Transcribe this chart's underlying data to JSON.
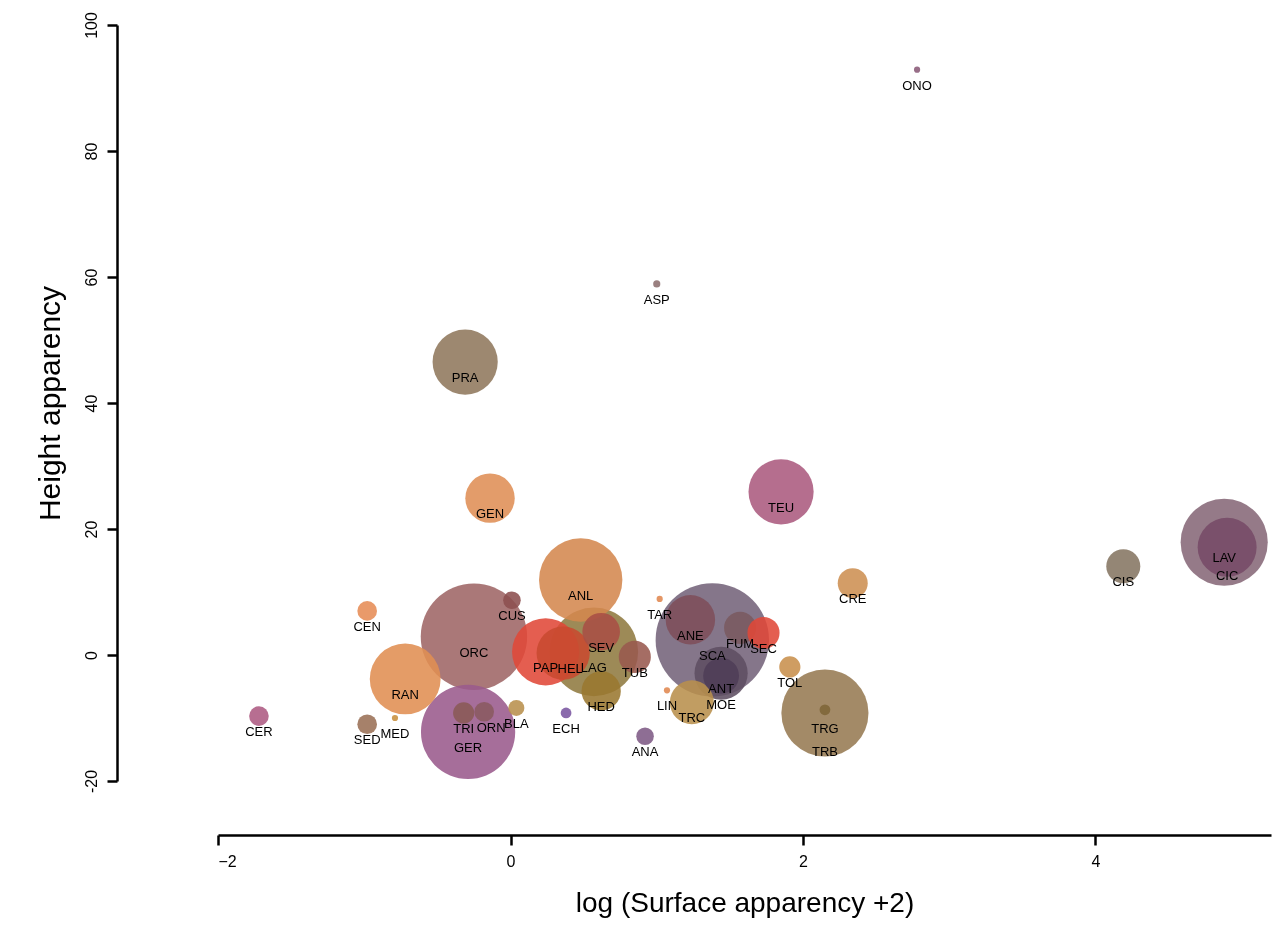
{
  "chart_data": {
    "type": "bubble",
    "xlabel": "log (Surface apparency +2)",
    "ylabel": "Height apparency",
    "marker": "circle",
    "xlim": [
      -2,
      5.2
    ],
    "ylim": [
      -20,
      100
    ],
    "xticks": [
      {
        "value": -2,
        "label": "−2"
      },
      0,
      2,
      4
    ],
    "yticks": [
      -20,
      0,
      20,
      40,
      60,
      80,
      100
    ],
    "x": [
      2.78,
      1.0,
      -0.31,
      -0.14,
      1.85,
      2.34,
      4.19,
      4.88,
      4.9,
      0.48,
      0.01,
      -0.25,
      -0.98,
      -1.72,
      -0.98,
      -0.79,
      -0.72,
      -0.29,
      -0.32,
      -0.18,
      0.04,
      0.38,
      0.24,
      0.36,
      0.57,
      0.62,
      0.62,
      0.85,
      1.02,
      1.23,
      1.38,
      1.44,
      1.44,
      1.57,
      1.73,
      1.07,
      1.24,
      0.92,
      1.91,
      2.15,
      2.15
    ],
    "values": [
      92.9,
      58.9,
      46.5,
      24.9,
      25.9,
      11.4,
      14.1,
      17.9,
      17.1,
      11.9,
      8.7,
      2.9,
      7.0,
      -9.7,
      -11.0,
      -10.0,
      -3.8,
      -12.2,
      -9.2,
      -9.0,
      -8.4,
      -9.2,
      0.5,
      0.3,
      0.5,
      3.7,
      -5.7,
      -0.3,
      8.9,
      5.6,
      2.4,
      -2.9,
      -3.3,
      4.3,
      3.5,
      -5.6,
      -7.5,
      -12.9,
      -1.9,
      -9.2,
      -8.7
    ],
    "sizes": [
      0.003,
      0.004,
      0.33,
      0.19,
      0.33,
      0.07,
      0.09,
      0.59,
      0.27,
      0.54,
      0.024,
      0.88,
      0.03,
      0.03,
      0.03,
      0.003,
      0.39,
      0.69,
      0.035,
      0.03,
      0.02,
      0.009,
      0.35,
      0.22,
      0.61,
      0.11,
      0.12,
      0.08,
      0.003,
      0.19,
      1,
      0.22,
      0.1,
      0.08,
      0.08,
      0.003,
      0.15,
      0.024,
      0.035,
      0.59,
      0.009
    ],
    "colors": [
      "#8a5a78",
      "#8c6e6e",
      "#8f785c",
      "#df8e55",
      "#ab5a7e",
      "#cd9052",
      "#857562",
      "#866877",
      "#764a66",
      "#d4884e",
      "#8c4e4e",
      "#9e6565",
      "#e68c55",
      "#ad5a82",
      "#9a7055",
      "#c8903e",
      "#e08e52",
      "#9a5a8c",
      "#8a5a55",
      "#8a5a60",
      "#b8904c",
      "#7a55a0",
      "#e04838",
      "#c84a30",
      "#8f7a40",
      "#a84f45",
      "#9a7830",
      "#99594e",
      "#e08850",
      "#7e4e5a",
      "#74637a",
      "#5e4e62",
      "#4e3e58",
      "#7a5a60",
      "#e04838",
      "#e08850",
      "#b8904c",
      "#7e5a85",
      "#c8904c",
      "#967a52",
      "#7e6538"
    ],
    "annotations": [
      {
        "text": "ONO",
        "x": 2.78,
        "y": 92.9
      },
      {
        "text": "ASP",
        "x": 1.0,
        "y": 58.9
      },
      {
        "text": "PRA",
        "x": -0.31,
        "y": 46.5
      },
      {
        "text": "GEN",
        "x": -0.14,
        "y": 24.9
      },
      {
        "text": "TEU",
        "x": 1.85,
        "y": 25.9
      },
      {
        "text": "CRE",
        "x": 2.34,
        "y": 11.4
      },
      {
        "text": "CIS",
        "x": 4.19,
        "y": 14.1
      },
      {
        "text": "LAV",
        "x": 4.88,
        "y": 17.9
      },
      {
        "text": "CIC",
        "x": 4.9,
        "y": 17.1
      },
      {
        "text": "ANL",
        "x": 0.48,
        "y": 11.9
      },
      {
        "text": "CUS",
        "x": 0.01,
        "y": 8.7
      },
      {
        "text": "ORC",
        "x": -0.25,
        "y": 2.9
      },
      {
        "text": "CEN",
        "x": -0.98,
        "y": 7.0
      },
      {
        "text": "CER",
        "x": -1.72,
        "y": -9.7
      },
      {
        "text": "SED",
        "x": -0.98,
        "y": -11.0
      },
      {
        "text": "MED",
        "x": -0.79,
        "y": -10.0
      },
      {
        "text": "RAN",
        "x": -0.72,
        "y": -3.8
      },
      {
        "text": "GER",
        "x": -0.29,
        "y": -12.2
      },
      {
        "text": "TRI",
        "x": -0.32,
        "y": -9.2
      },
      {
        "text": "ORN",
        "x": -0.18,
        "y": -9.0
      },
      {
        "text": "BLA",
        "x": 0.04,
        "y": -8.4
      },
      {
        "text": "ECH",
        "x": 0.38,
        "y": -9.2
      },
      {
        "text": "PAP",
        "x": 0.24,
        "y": 0.5
      },
      {
        "text": "HEL",
        "x": 0.36,
        "y": 0.3
      },
      {
        "text": "LAG",
        "x": 0.57,
        "y": 0.5
      },
      {
        "text": "SEV",
        "x": 0.62,
        "y": 3.7
      },
      {
        "text": "HED",
        "x": 0.62,
        "y": -5.7
      },
      {
        "text": "TUB",
        "x": 0.85,
        "y": -0.3
      },
      {
        "text": "TAR",
        "x": 1.02,
        "y": 8.9
      },
      {
        "text": "ANE",
        "x": 1.23,
        "y": 5.6
      },
      {
        "text": "SCA",
        "x": 1.38,
        "y": 2.4
      },
      {
        "text": "ANT",
        "x": 1.44,
        "y": -2.9
      },
      {
        "text": "MOE",
        "x": 1.44,
        "y": -3.3
      },
      {
        "text": "FUM",
        "x": 1.57,
        "y": 4.3
      },
      {
        "text": "SEC",
        "x": 1.73,
        "y": 3.5
      },
      {
        "text": "LIN",
        "x": 1.07,
        "y": -5.6
      },
      {
        "text": "TRC",
        "x": 1.24,
        "y": -7.5
      },
      {
        "text": "ANA",
        "x": 0.92,
        "y": -12.9
      },
      {
        "text": "TOL",
        "x": 1.91,
        "y": -1.9
      },
      {
        "text": "TRG",
        "x": 2.15,
        "y": -9.2
      },
      {
        "text": "TRB",
        "x": 2.15,
        "y": -8.7
      }
    ]
  }
}
